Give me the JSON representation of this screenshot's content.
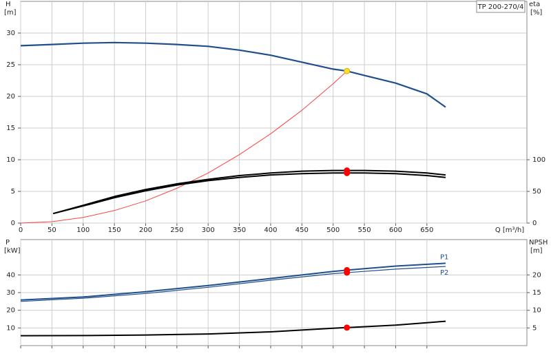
{
  "chart_data": [
    {
      "type": "line",
      "title": "TP 200-270/4",
      "xlabel": "Q [m³/h]",
      "ylabel": "H",
      "yunit": "[m]",
      "y2label": "eta",
      "y2unit": "[%]",
      "xlim": [
        0,
        810
      ],
      "xticks": [
        0,
        50,
        100,
        150,
        200,
        250,
        300,
        350,
        400,
        450,
        500,
        550,
        600,
        650
      ],
      "xticklabels": true,
      "ylim": [
        0,
        35
      ],
      "yticks": [
        0,
        5,
        10,
        15,
        20,
        25,
        30
      ],
      "y2lim": [
        0,
        350
      ],
      "y2ticks": [
        0,
        50,
        100
      ],
      "grid": true,
      "series": [
        {
          "color": "#1f4e8c",
          "width": 2.2,
          "x": [
            0,
            50,
            100,
            150,
            200,
            250,
            300,
            350,
            400,
            450,
            500,
            522,
            550,
            600,
            650,
            680
          ],
          "values": [
            28.0,
            28.2,
            28.4,
            28.5,
            28.4,
            28.2,
            27.9,
            27.3,
            26.5,
            25.4,
            24.3,
            24.0,
            23.3,
            22.1,
            20.4,
            18.3
          ]
        },
        {
          "color": "#ff4040",
          "width": 1,
          "x": [
            0,
            50,
            100,
            150,
            200,
            250,
            300,
            350,
            400,
            450,
            500,
            522
          ],
          "values": [
            0,
            0.22,
            0.88,
            1.98,
            3.5,
            5.5,
            7.9,
            10.8,
            14.1,
            17.8,
            22.0,
            24.0
          ]
        },
        {
          "color": "#000000",
          "width": 2,
          "axis": "y2",
          "x": [
            52,
            100,
            150,
            200,
            250,
            300,
            350,
            400,
            450,
            500,
            522,
            550,
            600,
            650,
            680
          ],
          "values": [
            15,
            28,
            42,
            53,
            62,
            69,
            75,
            79,
            82,
            83,
            83,
            83,
            82,
            79,
            76
          ]
        },
        {
          "color": "#000000",
          "width": 2,
          "axis": "y2",
          "x": [
            52,
            100,
            150,
            200,
            250,
            300,
            350,
            400,
            450,
            500,
            522,
            550,
            600,
            650,
            680
          ],
          "values": [
            15,
            27,
            40,
            51,
            60,
            67,
            72,
            76,
            78,
            79,
            79,
            79,
            78,
            75,
            72
          ]
        },
        {
          "color": "#ffdd33",
          "marker": true,
          "x": [
            522
          ],
          "values": [
            24.0
          ]
        },
        {
          "color": "#ff0000",
          "marker": true,
          "axis": "y2",
          "x": [
            522,
            522
          ],
          "values": [
            83,
            79
          ]
        }
      ]
    },
    {
      "type": "line",
      "ylabel": "P",
      "yunit": "[kW]",
      "y2label": "NPSH",
      "y2unit": "[m]",
      "xlim": [
        0,
        810
      ],
      "xticks": [
        0,
        50,
        100,
        150,
        200,
        250,
        300,
        350,
        400,
        450,
        500,
        550,
        600,
        650
      ],
      "xticklabels": false,
      "ylim": [
        0,
        60
      ],
      "yticks": [
        10,
        20,
        30,
        40
      ],
      "y2lim": [
        0,
        30
      ],
      "y2ticks": [
        5,
        10,
        15,
        20
      ],
      "grid": true,
      "series": [
        {
          "name": "P1",
          "label_position": "above",
          "color": "#1f4e8c",
          "width": 2,
          "x": [
            0,
            100,
            200,
            300,
            400,
            500,
            522,
            600,
            680
          ],
          "values": [
            25.8,
            27.5,
            30.5,
            34.0,
            38.0,
            42.0,
            42.7,
            45.0,
            46.6
          ]
        },
        {
          "name": "P2",
          "label_position": "below",
          "color": "#1f4e8c",
          "width": 1.2,
          "x": [
            0,
            100,
            200,
            300,
            400,
            500,
            522,
            600,
            680
          ],
          "values": [
            25.0,
            26.8,
            29.5,
            33.0,
            37.0,
            40.7,
            41.3,
            43.3,
            44.8
          ]
        },
        {
          "color": "#000000",
          "width": 2,
          "axis": "y2",
          "x": [
            0,
            100,
            200,
            300,
            400,
            500,
            522,
            600,
            680
          ],
          "values": [
            2.8,
            2.85,
            3.0,
            3.3,
            3.9,
            4.9,
            5.1,
            5.8,
            6.9
          ]
        },
        {
          "color": "#ff0000",
          "marker": true,
          "x": [
            522,
            522
          ],
          "values": [
            42.7,
            41.3
          ]
        },
        {
          "color": "#ff0000",
          "marker": true,
          "axis": "y2",
          "x": [
            522
          ],
          "values": [
            5.1
          ]
        }
      ]
    }
  ]
}
